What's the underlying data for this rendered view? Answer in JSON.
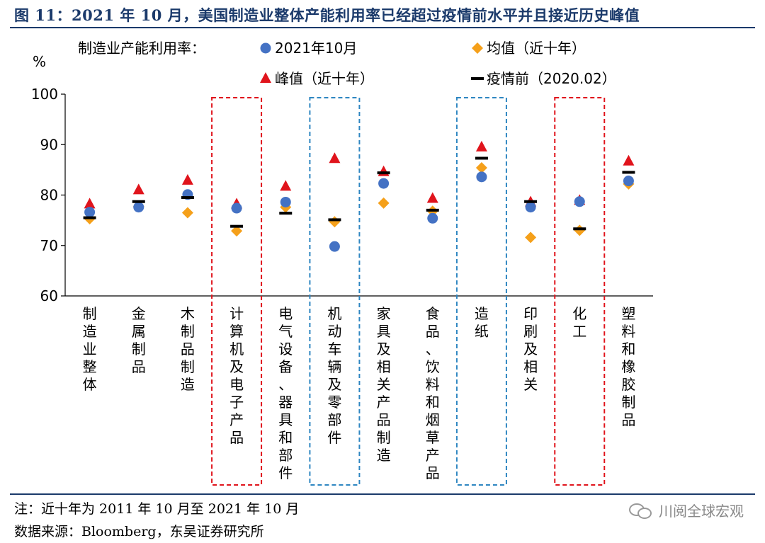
{
  "title": "图 11：2021 年 10 月，美国制造业整体产能利用率已经超过疫情前水平并且接近历史峰值",
  "note": "注：近十年为 2011 年 10 月至 2021 年 10 月",
  "source": "数据来源：Bloomberg，东吴证券研究所",
  "watermark": "川阅全球宏观",
  "colors": {
    "oct2021": "#4472c4",
    "mean": "#f5a01a",
    "peak": "#e0141c",
    "pre": "#000000",
    "box_red": "#e0141c",
    "box_blue": "#2e86c1"
  },
  "chart_data": {
    "type": "scatter",
    "legend_title": "制造业产能利用率：",
    "ylabel": "%",
    "ylim": [
      60,
      100
    ],
    "yticks": [
      60,
      70,
      80,
      90,
      100
    ],
    "categories": [
      "制造业整体",
      "金属制品",
      "木制品制造",
      "计算机及电子产品",
      "电气设备、器具和部件",
      "机动车辆及零部件",
      "家具及相关产品制造",
      "食品、饮料和烟草产品",
      "造纸",
      "印刷及相关",
      "化工",
      "塑料和橡胶制品"
    ],
    "series": [
      {
        "name": "2021年10月",
        "marker": "circle",
        "values": [
          76.6,
          77.6,
          80.1,
          77.4,
          78.6,
          69.8,
          82.3,
          75.4,
          83.6,
          77.6,
          78.7,
          82.8
        ]
      },
      {
        "name": "均值（近十年）",
        "marker": "diamond",
        "values": [
          75.3,
          77.7,
          76.5,
          72.9,
          77.6,
          74.7,
          78.4,
          76.8,
          85.4,
          71.6,
          73.0,
          82.2
        ]
      },
      {
        "name": "峰值（近十年）",
        "marker": "triangle",
        "values": [
          78.2,
          81.0,
          82.9,
          78.2,
          81.7,
          87.2,
          84.6,
          79.3,
          89.5,
          78.6,
          78.9,
          86.7
        ]
      },
      {
        "name": "疫情前（2020.02）",
        "marker": "dash",
        "values": [
          75.5,
          78.7,
          79.5,
          73.8,
          76.4,
          75.1,
          84.4,
          77.0,
          87.3,
          78.7,
          73.3,
          84.5
        ]
      }
    ],
    "highlight_boxes": [
      {
        "category_index": 3,
        "color": "red"
      },
      {
        "category_index": 5,
        "color": "blue"
      },
      {
        "category_index": 8,
        "color": "blue"
      },
      {
        "category_index": 10,
        "color": "red"
      }
    ]
  }
}
